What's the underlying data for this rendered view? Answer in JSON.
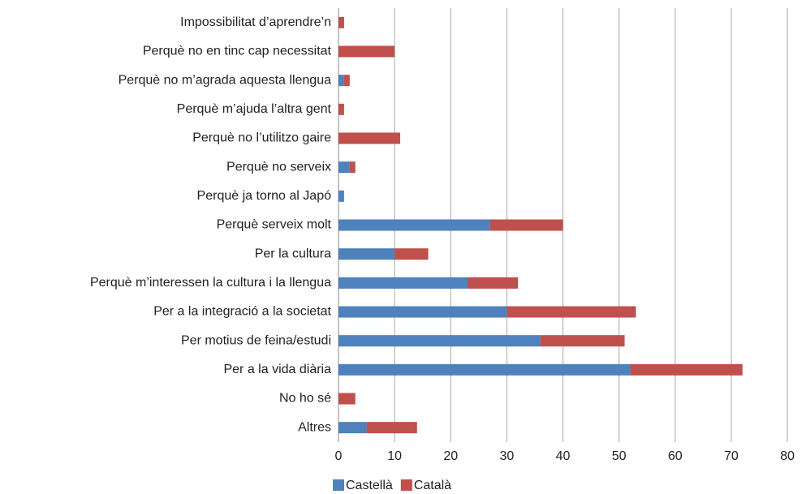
{
  "chart_data": {
    "type": "stacked_barh",
    "categories": [
      "Impossibilitat d’aprendre’n",
      "Perquè no en tinc cap necessitat",
      "Perquè no m’agrada aquesta llengua",
      "Perquè m’ajuda l’altra gent",
      "Perquè no l’utilitzo gaire",
      "Perquè no serveix",
      "Perquè ja torno al Japó",
      "Perquè serveix molt",
      "Per la cultura",
      "Perquè m’interessen la cultura i la llengua",
      "Per a la integració a la societat",
      "Per motius de feina/estudi",
      "Per a la vida diària",
      "No ho sé",
      "Altres"
    ],
    "series": [
      {
        "name": "Castellà",
        "color": "#4f81bd",
        "values": [
          0,
          0,
          1,
          0,
          0,
          2,
          1,
          27,
          10,
          23,
          30,
          36,
          52,
          0,
          5
        ]
      },
      {
        "name": "Català",
        "color": "#c0504d",
        "values": [
          1,
          10,
          1,
          1,
          11,
          1,
          0,
          13,
          6,
          9,
          23,
          15,
          20,
          3,
          9
        ]
      }
    ],
    "xlim": [
      0,
      80
    ],
    "xticks": [
      0,
      10,
      20,
      30,
      40,
      50,
      60,
      70,
      80
    ],
    "grid": true,
    "legend": "bottom"
  }
}
